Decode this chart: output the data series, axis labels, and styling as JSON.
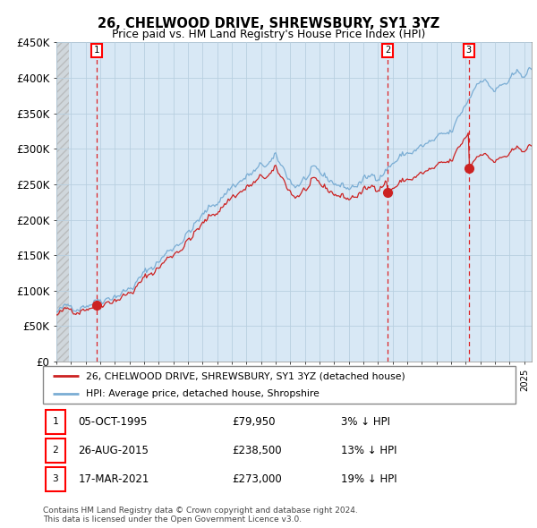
{
  "title": "26, CHELWOOD DRIVE, SHREWSBURY, SY1 3YZ",
  "subtitle": "Price paid vs. HM Land Registry's House Price Index (HPI)",
  "ylabel_ticks": [
    "£0",
    "£50K",
    "£100K",
    "£150K",
    "£200K",
    "£250K",
    "£300K",
    "£350K",
    "£400K",
    "£450K"
  ],
  "ylim": [
    0,
    450000
  ],
  "xlim_start": 1993.0,
  "xlim_end": 2025.5,
  "hpi_color": "#7aadd4",
  "price_color": "#cc2222",
  "sale_dates": [
    1995.75,
    2015.65,
    2021.21
  ],
  "sale_prices": [
    79950,
    238500,
    273000
  ],
  "sale_labels": [
    "1",
    "2",
    "3"
  ],
  "legend_entries": [
    "26, CHELWOOD DRIVE, SHREWSBURY, SY1 3YZ (detached house)",
    "HPI: Average price, detached house, Shropshire"
  ],
  "table_rows": [
    [
      "1",
      "05-OCT-1995",
      "£79,950",
      "3% ↓ HPI"
    ],
    [
      "2",
      "26-AUG-2015",
      "£238,500",
      "13% ↓ HPI"
    ],
    [
      "3",
      "17-MAR-2021",
      "£273,000",
      "19% ↓ HPI"
    ]
  ],
  "footnote": "Contains HM Land Registry data © Crown copyright and database right 2024.\nThis data is licensed under the Open Government Licence v3.0.",
  "plot_bg": "#d8e8f5",
  "hatch_color": "#c8c8c8",
  "grid_color": "#b8cfe0"
}
